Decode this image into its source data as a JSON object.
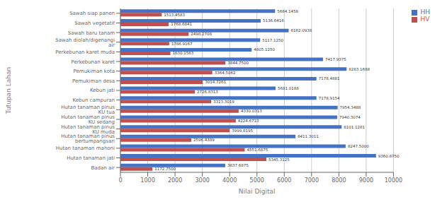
{
  "chart_data": {
    "type": "bar",
    "orientation": "horizontal",
    "xlabel": "Nilai Digital",
    "ylabel": "Tutupan Lahan",
    "categories": [
      "Sawah siap panen",
      "Sawah vegetatif",
      "Sawah baru tanam",
      "Sawah diolah/digenangi air",
      "Perkebunan karet muda",
      "Perkebunan karet",
      "Pemukiman kota",
      "Pemukiman desa",
      "Kebun jati",
      "Kebun campuran",
      "Hutan tanaman pinus KU tua",
      "Hutan tanaman pinus KU sedang",
      "Hutan tanaman pinus KU muda",
      "Hutan tanaman pinus bertumpangsari",
      "Hutan tanaman mahoni",
      "Hutan tanaman jati",
      "Badan air"
    ],
    "series": [
      {
        "name": "HH",
        "color": "#4472c4",
        "values": [
          5664.1458,
          5136.6416,
          6162.0938,
          5117.125,
          4805.125,
          7417.9375,
          8283.1688,
          7178.4881,
          5681.0188,
          7178.9154,
          7954.3488,
          7940.3074,
          8101.1281,
          6411.3011,
          8247.5,
          9360.875,
          3837.6875
        ],
        "value_labels": [
          "5664.1458",
          "5136.6416",
          "6162.0938",
          "5117.1250",
          "4805.1250",
          "7417.9375",
          "8283.1688",
          "7178.4881",
          "5681.0188",
          "7178.9154",
          "7954.3488",
          "7940.3074",
          "8101.1281",
          "6411.3011",
          "8247.5000",
          "9360.8750",
          "3837.6875"
        ]
      },
      {
        "name": "HV",
        "color": "#c0504d",
        "values": [
          1513.4583,
          1768.6841,
          2498.2708,
          1786.9167,
          1830.1563,
          3844.75,
          3364.5062,
          3014.7261,
          2726.8313,
          3323.3019,
          4330.0313,
          4224.6713,
          3999.8195,
          2596.4389,
          4551.6875,
          5345.3125,
          1172.75
        ],
        "value_labels": [
          "1513.4583",
          "1768.6841",
          "2498.2708",
          "1786.9167",
          "1830.1563",
          "3844.7500",
          "3364.5062",
          "3014.7261",
          "2726.8313",
          "3323.3019",
          "4330.0313",
          "4224.6713",
          "3999.8195",
          "2596.4389",
          "4551.6875",
          "5345.3125",
          "1172.7500"
        ]
      }
    ],
    "xlim": [
      0,
      10000
    ],
    "xticks": [
      0,
      1000,
      2000,
      3000,
      4000,
      5000,
      6000,
      7000,
      8000,
      9000,
      10000
    ],
    "grid": true,
    "legend": "right",
    "data_labels": true
  }
}
